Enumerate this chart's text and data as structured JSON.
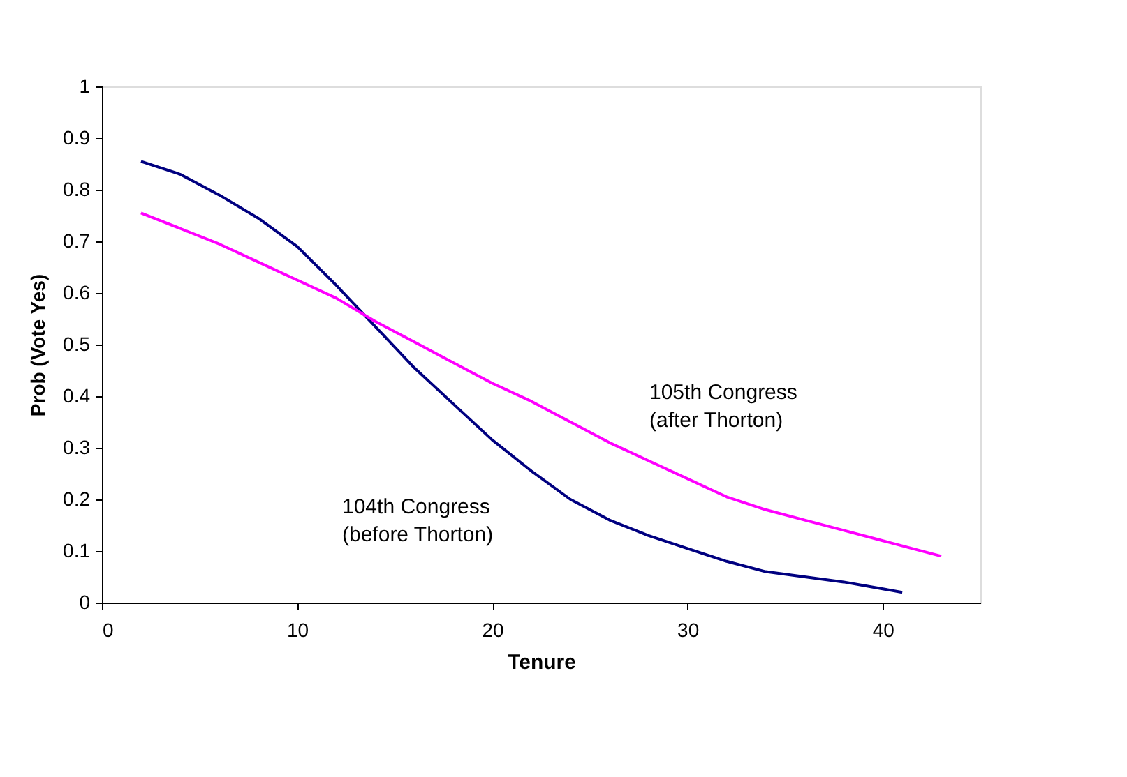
{
  "chart_data": {
    "type": "line",
    "xlabel": "Tenure",
    "ylabel": "Prob (Vote Yes)",
    "xlim": [
      0,
      45
    ],
    "xticks": [
      0,
      10,
      20,
      30,
      40
    ],
    "ylim": [
      0,
      1
    ],
    "yticks": [
      0,
      0.1,
      0.2,
      0.3,
      0.4,
      0.5,
      0.6,
      0.7,
      0.8,
      0.9,
      1
    ],
    "grid": false,
    "legend": false,
    "marker": "none",
    "line_style": "solid",
    "series": [
      {
        "name": "104th Congress (before Thorton)",
        "color": "#000080",
        "x": [
          2,
          4,
          6,
          8,
          10,
          12,
          14,
          16,
          18,
          20,
          22,
          24,
          26,
          28,
          30,
          32,
          34,
          36,
          38,
          41
        ],
        "values": [
          0.855,
          0.83,
          0.79,
          0.745,
          0.69,
          0.615,
          0.535,
          0.455,
          0.385,
          0.315,
          0.255,
          0.2,
          0.16,
          0.13,
          0.105,
          0.08,
          0.06,
          0.05,
          0.04,
          0.02
        ]
      },
      {
        "name": "105th Congress (after Thorton)",
        "color": "#ff00ff",
        "x": [
          2,
          4,
          6,
          8,
          10,
          12,
          14,
          16,
          18,
          20,
          22,
          24,
          26,
          28,
          30,
          32,
          34,
          36,
          38,
          40,
          43
        ],
        "values": [
          0.755,
          0.725,
          0.695,
          0.66,
          0.625,
          0.59,
          0.545,
          0.505,
          0.465,
          0.425,
          0.39,
          0.35,
          0.31,
          0.275,
          0.24,
          0.205,
          0.18,
          0.16,
          0.14,
          0.12,
          0.09
        ]
      }
    ]
  }
}
